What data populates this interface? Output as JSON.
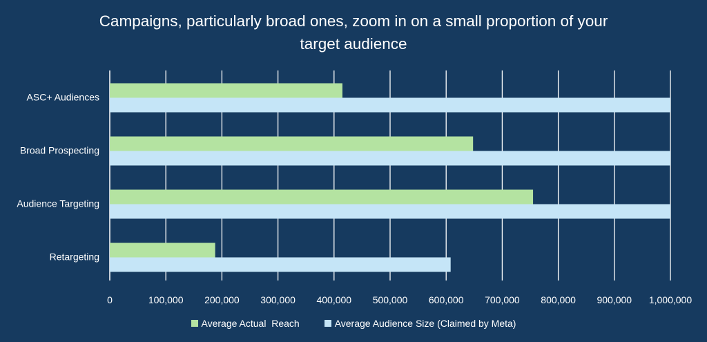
{
  "chart_data": {
    "type": "bar",
    "orientation": "horizontal",
    "title_lines": [
      "Campaigns, particularly broad ones, zoom in on a small proportion of your",
      "target audience"
    ],
    "categories": [
      "ASC+ Audiences",
      "Broad Prospecting",
      "Audience Targeting",
      "Retargeting"
    ],
    "series": [
      {
        "name": "Average Actual  Reach",
        "color": "#b4e3a1",
        "values": [
          415000,
          648000,
          755000,
          188000
        ]
      },
      {
        "name": "Average Audience Size (Claimed by Meta)",
        "color": "#c5e5f7",
        "values": [
          1000000,
          1000000,
          1000000,
          608000
        ]
      }
    ],
    "xlim": [
      0,
      1000000
    ],
    "xticks": [
      0,
      100000,
      200000,
      300000,
      400000,
      500000,
      600000,
      700000,
      800000,
      900000,
      1000000
    ],
    "xtick_labels": [
      "0",
      "100,000",
      "200,000",
      "300,000",
      "400,000",
      "500,000",
      "600,000",
      "700,000",
      "800,000",
      "900,000",
      "1,000,000"
    ],
    "grid": true,
    "legend_position": "bottom",
    "background": "#163a5f"
  }
}
